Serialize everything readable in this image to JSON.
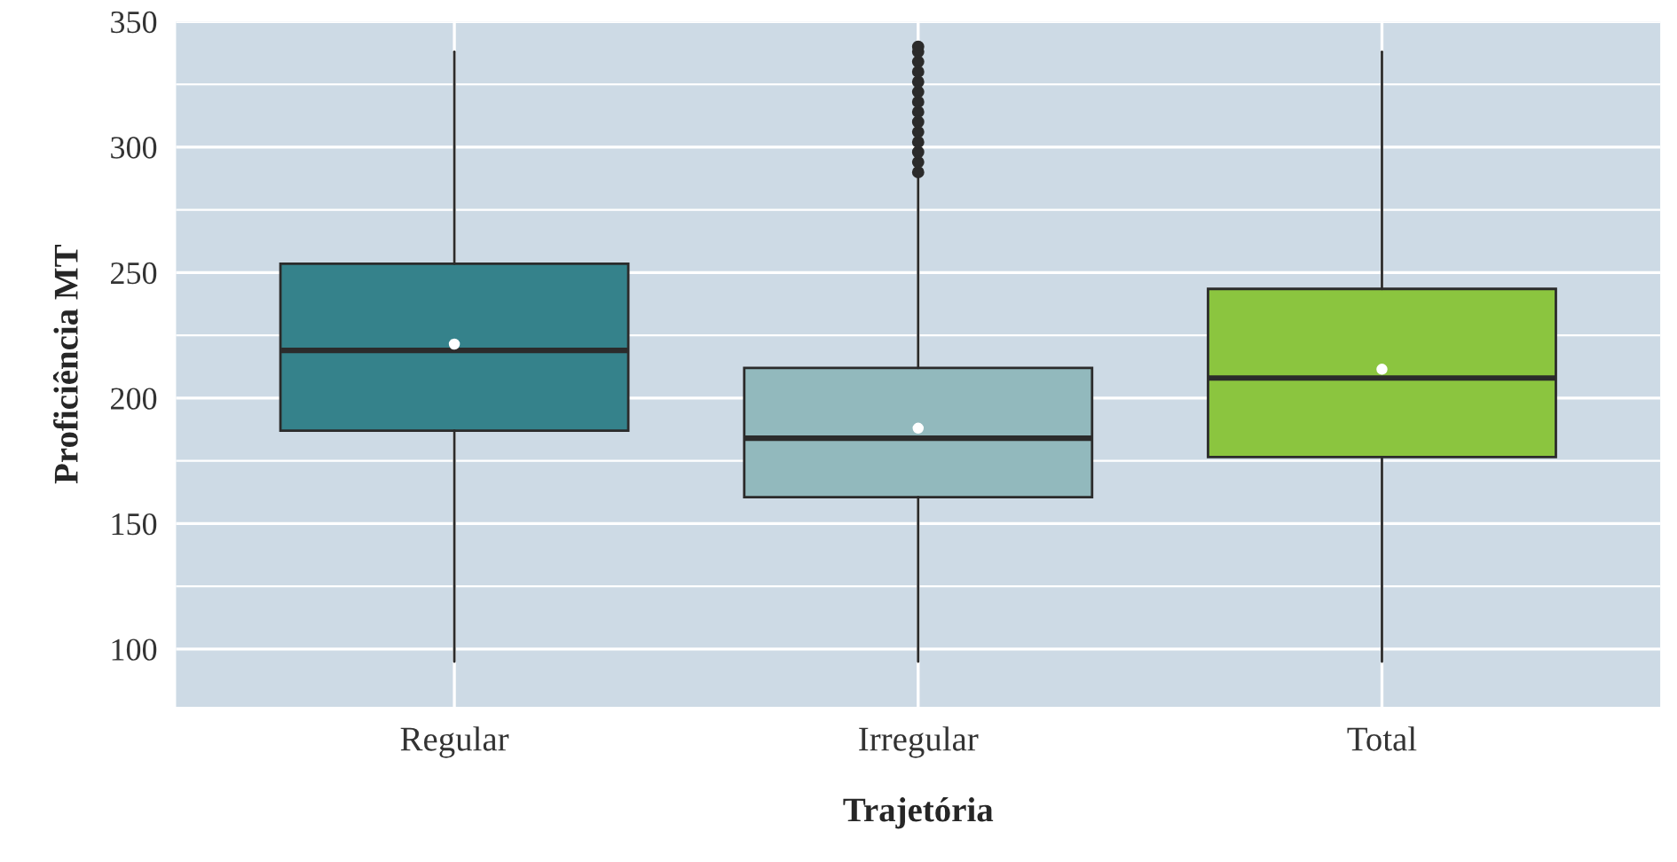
{
  "chart_data": {
    "type": "box",
    "xlabel": "Trajetória",
    "ylabel": "Proficiência MT",
    "categories": [
      "Regular",
      "Irregular",
      "Total"
    ],
    "colors": [
      "#35828b",
      "#92b9bd",
      "#8bc53f"
    ],
    "boxes": [
      {
        "low": 95,
        "q1": 187,
        "median": 219,
        "q3": 253.5,
        "high": 338,
        "mean": 221.5
      },
      {
        "low": 95,
        "q1": 160.5,
        "median": 184,
        "q3": 212,
        "high": 288.5,
        "mean": 188,
        "outliers": [
          290,
          294,
          298,
          302,
          306,
          310,
          314,
          318,
          322,
          326,
          330,
          334,
          338,
          340
        ]
      },
      {
        "low": 95,
        "q1": 176.5,
        "median": 208,
        "q3": 243.5,
        "high": 338,
        "mean": 211.5
      }
    ],
    "ylim": [
      77,
      350
    ],
    "yticks": [
      100,
      150,
      200,
      250,
      300,
      350
    ],
    "grid": true
  }
}
